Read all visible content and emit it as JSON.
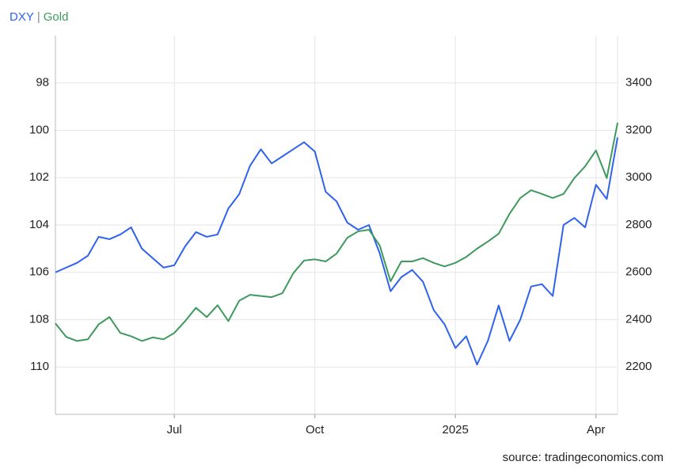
{
  "chart_data": {
    "type": "line",
    "title_separator": "|",
    "source": "source: tradingeconomics.com",
    "categories": [
      null,
      null,
      null,
      null,
      null,
      null,
      null,
      null,
      null,
      null,
      null,
      "Jul",
      null,
      null,
      null,
      null,
      null,
      null,
      null,
      null,
      null,
      null,
      null,
      null,
      "Oct",
      null,
      null,
      null,
      null,
      null,
      null,
      null,
      null,
      null,
      null,
      null,
      null,
      "2025",
      null,
      null,
      null,
      null,
      null,
      null,
      null,
      null,
      null,
      null,
      null,
      null,
      "Apr",
      null,
      null
    ],
    "series": [
      {
        "name": "DXY",
        "color": "#2f62ee",
        "axis": "y",
        "values": [
          106.0,
          105.8,
          105.6,
          105.3,
          104.5,
          104.6,
          104.4,
          104.1,
          105.0,
          105.4,
          105.8,
          105.7,
          104.9,
          104.3,
          104.5,
          104.4,
          103.3,
          102.7,
          101.5,
          100.8,
          101.4,
          101.1,
          100.8,
          100.5,
          100.9,
          102.6,
          103.0,
          103.9,
          104.2,
          104.0,
          105.2,
          106.8,
          106.2,
          105.9,
          106.4,
          107.6,
          108.2,
          109.2,
          108.7,
          109.9,
          108.9,
          107.4,
          108.9,
          108.0,
          106.6,
          106.5,
          107.0,
          104.0,
          103.7,
          104.1,
          102.3,
          102.9,
          100.3
        ]
      },
      {
        "name": "Gold",
        "color": "#3d9a5c",
        "axis": "y2",
        "values": [
          2384,
          2327,
          2310,
          2317,
          2380,
          2411,
          2344,
          2330,
          2310,
          2325,
          2317,
          2344,
          2394,
          2450,
          2411,
          2461,
          2394,
          2480,
          2505,
          2500,
          2495,
          2512,
          2596,
          2650,
          2655,
          2646,
          2679,
          2746,
          2773,
          2780,
          2713,
          2562,
          2646,
          2646,
          2660,
          2640,
          2625,
          2640,
          2665,
          2700,
          2730,
          2763,
          2847,
          2914,
          2947,
          2931,
          2914,
          2931,
          2998,
          3048,
          3115,
          2998,
          3232
        ]
      }
    ],
    "ylim": [
      112,
      96
    ],
    "yticks": [
      98,
      100,
      102,
      104,
      106,
      108,
      110
    ],
    "y2lim": [
      2000,
      3600
    ],
    "y2ticks": [
      2200,
      2400,
      2600,
      2800,
      3000,
      3200,
      3400
    ],
    "grid": true
  }
}
